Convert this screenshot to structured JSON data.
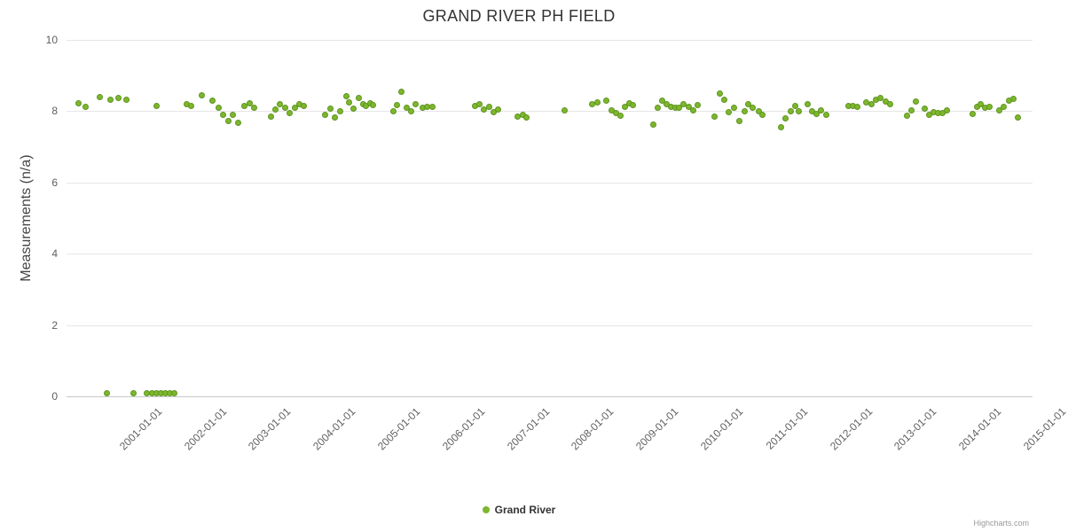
{
  "credits": {
    "label": "Highcharts.com"
  },
  "legend": {
    "label": "Grand River"
  },
  "colors": {
    "point_fill": "#7db72c",
    "point_border": "#5f9421",
    "grid": "#e6e6e6",
    "axis_line": "#c8c8c8",
    "tick_text": "#606060",
    "title_text": "#333333"
  },
  "chart_data": {
    "type": "scatter",
    "title": "GRAND RIVER PH FIELD",
    "xlabel": "",
    "ylabel": "Measurements (n/a)",
    "ylim": [
      0,
      10
    ],
    "yticks": [
      0,
      2,
      4,
      6,
      8,
      10
    ],
    "xlim": [
      2000.04,
      2015.0
    ],
    "xticks": [
      {
        "value": 2001,
        "label": "2001-01-01"
      },
      {
        "value": 2002,
        "label": "2002-01-01"
      },
      {
        "value": 2003,
        "label": "2003-01-01"
      },
      {
        "value": 2004,
        "label": "2004-01-01"
      },
      {
        "value": 2005,
        "label": "2005-01-01"
      },
      {
        "value": 2006,
        "label": "2006-01-01"
      },
      {
        "value": 2007,
        "label": "2007-01-01"
      },
      {
        "value": 2008,
        "label": "2008-01-01"
      },
      {
        "value": 2009,
        "label": "2009-01-01"
      },
      {
        "value": 2010,
        "label": "2010-01-01"
      },
      {
        "value": 2011,
        "label": "2011-01-01"
      },
      {
        "value": 2012,
        "label": "2012-01-01"
      },
      {
        "value": 2013,
        "label": "2013-01-01"
      },
      {
        "value": 2014,
        "label": "2014-01-01"
      },
      {
        "value": 2015,
        "label": "2015-01-01"
      }
    ],
    "grid": "horizontal",
    "legend_position": "bottom",
    "series": [
      {
        "name": "Grand River",
        "color": "#7db72c",
        "points": [
          [
            2000.22,
            8.22
          ],
          [
            2000.34,
            8.12
          ],
          [
            2000.55,
            8.4
          ],
          [
            2000.66,
            0.08
          ],
          [
            2000.72,
            8.32
          ],
          [
            2000.85,
            8.36
          ],
          [
            2000.97,
            8.33
          ],
          [
            2001.08,
            0.08
          ],
          [
            2001.28,
            0.08
          ],
          [
            2001.36,
            0.08
          ],
          [
            2001.43,
            0.08
          ],
          [
            2001.43,
            8.15
          ],
          [
            2001.5,
            0.08
          ],
          [
            2001.57,
            0.08
          ],
          [
            2001.64,
            0.08
          ],
          [
            2001.71,
            0.08
          ],
          [
            2001.9,
            8.2
          ],
          [
            2001.97,
            8.15
          ],
          [
            2002.14,
            8.45
          ],
          [
            2002.3,
            8.3
          ],
          [
            2002.4,
            8.1
          ],
          [
            2002.47,
            7.9
          ],
          [
            2002.55,
            7.73
          ],
          [
            2002.62,
            7.9
          ],
          [
            2002.7,
            7.68
          ],
          [
            2002.8,
            8.15
          ],
          [
            2002.87,
            8.22
          ],
          [
            2002.95,
            8.1
          ],
          [
            2003.2,
            7.86
          ],
          [
            2003.28,
            8.05
          ],
          [
            2003.35,
            8.2
          ],
          [
            2003.43,
            8.1
          ],
          [
            2003.5,
            7.95
          ],
          [
            2003.58,
            8.1
          ],
          [
            2003.65,
            8.2
          ],
          [
            2003.72,
            8.15
          ],
          [
            2004.05,
            7.9
          ],
          [
            2004.12,
            8.08
          ],
          [
            2004.19,
            7.82
          ],
          [
            2004.28,
            8.0
          ],
          [
            2004.37,
            8.42
          ],
          [
            2004.42,
            8.25
          ],
          [
            2004.49,
            8.08
          ],
          [
            2004.56,
            8.37
          ],
          [
            2004.63,
            8.2
          ],
          [
            2004.68,
            8.15
          ],
          [
            2004.74,
            8.22
          ],
          [
            2004.79,
            8.18
          ],
          [
            2005.1,
            8.0
          ],
          [
            2005.16,
            8.18
          ],
          [
            2005.23,
            8.55
          ],
          [
            2005.31,
            8.1
          ],
          [
            2005.38,
            8.0
          ],
          [
            2005.45,
            8.2
          ],
          [
            2005.56,
            8.1
          ],
          [
            2005.63,
            8.12
          ],
          [
            2005.71,
            8.12
          ],
          [
            2006.37,
            8.15
          ],
          [
            2006.44,
            8.2
          ],
          [
            2006.51,
            8.05
          ],
          [
            2006.58,
            8.12
          ],
          [
            2006.65,
            7.98
          ],
          [
            2006.73,
            8.05
          ],
          [
            2007.03,
            7.85
          ],
          [
            2007.11,
            7.9
          ],
          [
            2007.16,
            7.83
          ],
          [
            2007.75,
            8.03
          ],
          [
            2008.18,
            8.2
          ],
          [
            2008.26,
            8.24
          ],
          [
            2008.4,
            8.3
          ],
          [
            2008.48,
            8.02
          ],
          [
            2008.55,
            7.95
          ],
          [
            2008.62,
            7.88
          ],
          [
            2008.69,
            8.12
          ],
          [
            2008.76,
            8.22
          ],
          [
            2008.81,
            8.18
          ],
          [
            2009.13,
            7.62
          ],
          [
            2009.2,
            8.1
          ],
          [
            2009.27,
            8.3
          ],
          [
            2009.34,
            8.2
          ],
          [
            2009.4,
            8.12
          ],
          [
            2009.47,
            8.1
          ],
          [
            2009.53,
            8.1
          ],
          [
            2009.6,
            8.2
          ],
          [
            2009.67,
            8.12
          ],
          [
            2009.74,
            8.02
          ],
          [
            2009.81,
            8.18
          ],
          [
            2010.08,
            7.85
          ],
          [
            2010.16,
            8.5
          ],
          [
            2010.23,
            8.33
          ],
          [
            2010.3,
            7.97
          ],
          [
            2010.38,
            8.1
          ],
          [
            2010.46,
            7.72
          ],
          [
            2010.54,
            8.0
          ],
          [
            2010.6,
            8.2
          ],
          [
            2010.67,
            8.1
          ],
          [
            2010.76,
            8.0
          ],
          [
            2010.82,
            7.9
          ],
          [
            2011.1,
            7.55
          ],
          [
            2011.18,
            7.8
          ],
          [
            2011.25,
            8.0
          ],
          [
            2011.32,
            8.15
          ],
          [
            2011.38,
            8.0
          ],
          [
            2011.52,
            8.2
          ],
          [
            2011.59,
            8.0
          ],
          [
            2011.66,
            7.92
          ],
          [
            2011.73,
            8.02
          ],
          [
            2011.8,
            7.9
          ],
          [
            2012.15,
            8.15
          ],
          [
            2012.22,
            8.15
          ],
          [
            2012.29,
            8.12
          ],
          [
            2012.42,
            8.25
          ],
          [
            2012.51,
            8.2
          ],
          [
            2012.58,
            8.32
          ],
          [
            2012.65,
            8.38
          ],
          [
            2012.73,
            8.27
          ],
          [
            2012.8,
            8.2
          ],
          [
            2013.05,
            7.87
          ],
          [
            2013.12,
            8.02
          ],
          [
            2013.2,
            8.27
          ],
          [
            2013.33,
            8.08
          ],
          [
            2013.4,
            7.9
          ],
          [
            2013.47,
            7.97
          ],
          [
            2013.54,
            7.95
          ],
          [
            2013.61,
            7.95
          ],
          [
            2013.68,
            8.02
          ],
          [
            2014.07,
            7.92
          ],
          [
            2014.14,
            8.12
          ],
          [
            2014.2,
            8.2
          ],
          [
            2014.27,
            8.1
          ],
          [
            2014.34,
            8.12
          ],
          [
            2014.48,
            8.02
          ],
          [
            2014.55,
            8.12
          ],
          [
            2014.63,
            8.3
          ],
          [
            2014.7,
            8.35
          ],
          [
            2014.77,
            7.82
          ]
        ]
      }
    ]
  }
}
